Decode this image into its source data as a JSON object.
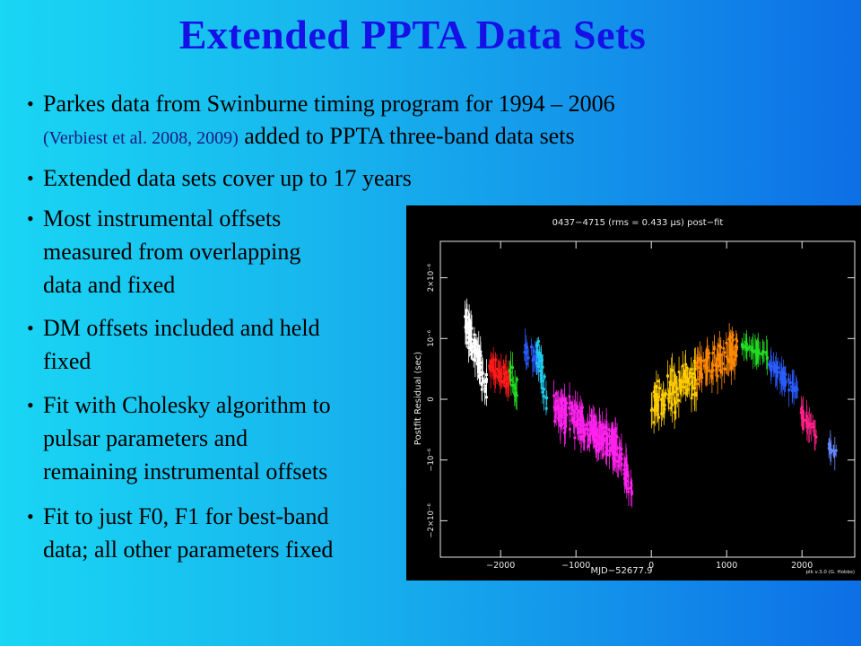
{
  "title": "Extended PPTA Data Sets",
  "bullets": [
    {
      "lines": [
        "Parkes data from Swinburne timing program for 1994 – 2006"
      ],
      "cite": "(Verbiest et al. 2008, 2009)",
      "cite_rest": " added to PPTA three-band data sets"
    },
    {
      "lines": [
        "Extended data sets cover up to 17 years"
      ]
    },
    {
      "lines": [
        "Most instrumental offsets",
        "measured from overlapping",
        "data and fixed"
      ]
    },
    {
      "lines": [
        "DM offsets included and held",
        "fixed"
      ]
    },
    {
      "lines": [
        "Fit with Cholesky algorithm to",
        "pulsar parameters and",
        "remaining instrumental offsets"
      ]
    },
    {
      "lines": [
        "Fit to just F0, F1 for best-band",
        "data; all other parameters fixed"
      ]
    }
  ],
  "bullet_glyph": "•",
  "chart_data": {
    "type": "scatter",
    "title": "0437−4715 (rms = 0.433 μs) post−fit",
    "xlabel": "MJD−52677.9",
    "ylabel": "Postfit Residual (sec)",
    "credit": "plk v.3.0 (G. Hobbs)",
    "xlim": [
      -2800,
      2700
    ],
    "ylim": [
      -2.6e-06,
      2.6e-06
    ],
    "xticks": [
      -2000,
      -1000,
      0,
      1000,
      2000
    ],
    "xtick_labels": [
      "−2000",
      "−1000",
      "0",
      "1000",
      "2000"
    ],
    "yticks": [
      -2e-06,
      -1e-06,
      0,
      1e-06,
      2e-06
    ],
    "ytick_labels": [
      "−2×10⁻⁶",
      "−10⁻⁶",
      "0",
      "10⁻⁶",
      "2×10⁻⁶"
    ],
    "series": [
      {
        "color": "#ffffff",
        "x_range": [
          -2480,
          -2180
        ],
        "y_center": [
          1.3e-06,
          2e-07
        ],
        "spread": 3.5e-07,
        "n": 90
      },
      {
        "color": "#ff1a1a",
        "x_range": [
          -2150,
          -1880
        ],
        "y_center": [
          6e-07,
          3e-07
        ],
        "spread": 2e-07,
        "n": 45
      },
      {
        "color": "#22dd22",
        "x_range": [
          -1900,
          -1780
        ],
        "y_center": [
          5e-07,
          1e-07
        ],
        "spread": 2.5e-07,
        "n": 15
      },
      {
        "color": "#2a5cff",
        "x_range": [
          -1700,
          -1500
        ],
        "y_center": [
          8e-07,
          6e-07
        ],
        "spread": 2e-07,
        "n": 25
      },
      {
        "color": "#22ccee",
        "x_range": [
          -1520,
          -1380
        ],
        "y_center": [
          9e-07,
          0.0
        ],
        "spread": 3.5e-07,
        "n": 30
      },
      {
        "color": "#ff22ee",
        "x_range": [
          -1300,
          -450
        ],
        "y_center": [
          -1e-07,
          -8e-07
        ],
        "spread": 3.5e-07,
        "n": 220
      },
      {
        "color": "#ff22ee",
        "x_range": [
          -450,
          -250
        ],
        "y_center": [
          -9e-07,
          -1.5e-06
        ],
        "spread": 3e-07,
        "n": 40
      },
      {
        "color": "#ffcc00",
        "x_range": [
          0,
          600
        ],
        "y_center": [
          -1e-07,
          4e-07
        ],
        "spread": 4e-07,
        "n": 120
      },
      {
        "color": "#ff8800",
        "x_range": [
          600,
          1150
        ],
        "y_center": [
          4e-07,
          8e-07
        ],
        "spread": 3.5e-07,
        "n": 110
      },
      {
        "color": "#22dd22",
        "x_range": [
          1200,
          1550
        ],
        "y_center": [
          9e-07,
          7e-07
        ],
        "spread": 1e-07,
        "n": 40
      },
      {
        "color": "#2a5cff",
        "x_range": [
          1550,
          1950
        ],
        "y_center": [
          6e-07,
          1e-07
        ],
        "spread": 1.2e-07,
        "n": 50
      },
      {
        "color": "#ff2288",
        "x_range": [
          1980,
          2200
        ],
        "y_center": [
          -2e-07,
          -6e-07
        ],
        "spread": 1.2e-07,
        "n": 25
      },
      {
        "color": "#6688ff",
        "x_range": [
          2350,
          2460
        ],
        "y_center": [
          -8e-07,
          -9e-07
        ],
        "spread": 8e-08,
        "n": 12
      }
    ]
  }
}
